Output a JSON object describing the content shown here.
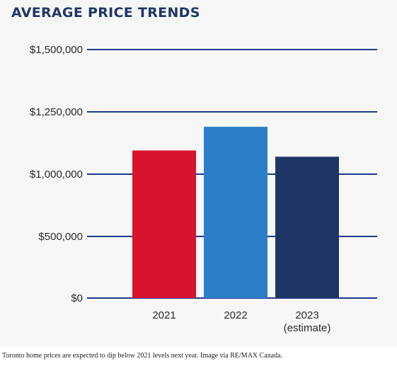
{
  "chart_data": {
    "type": "bar",
    "title": "AVERAGE PRICE TRENDS",
    "categories": [
      "2021",
      "2022",
      "2023\n(estimate)"
    ],
    "values": [
      1095000,
      1190000,
      1070000
    ],
    "series_colors": [
      "#d6142d",
      "#2b7fc8",
      "#1f3566"
    ],
    "y_ticks": [
      {
        "value": 0,
        "label": "$0"
      },
      {
        "value": 500000,
        "label": "$500,000"
      },
      {
        "value": 1000000,
        "label": "$1,000,000"
      },
      {
        "value": 1250000,
        "label": "$1,250,000"
      },
      {
        "value": 1500000,
        "label": "$1,500,000"
      }
    ],
    "grid": true,
    "gridline_color": "#1f3a8a",
    "xlabel": "",
    "ylabel": ""
  },
  "caption": "Toronto home prices are expected to dip below 2021 levels next year. Image via RE/MAX Canada."
}
